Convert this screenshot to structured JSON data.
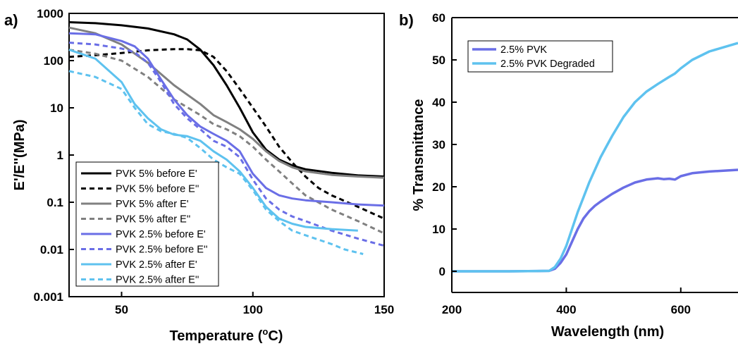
{
  "colors": {
    "black": "#000000",
    "gray": "#808080",
    "blue": "#6a6ee6",
    "lightblue": "#5ec2ef"
  },
  "chart_data": [
    {
      "panel_label": "a)",
      "type": "line",
      "xlabel": "Temperature (",
      "xlabel_sup": "o",
      "xlabel_suffix": "C)",
      "ylabel": "E'/E''(MPa)",
      "xlim": [
        30,
        150
      ],
      "ylim": [
        0.001,
        1000
      ],
      "yscale": "log",
      "xticks": [
        50,
        100,
        150
      ],
      "xtick_labels": [
        "50",
        "100",
        "150"
      ],
      "yticks": [
        0.001,
        0.01,
        0.1,
        1,
        10,
        100,
        1000
      ],
      "ytick_labels": [
        "0.001",
        "0.01",
        "0.1",
        "1",
        "10",
        "100",
        "1000"
      ],
      "legend_position": "lower-left",
      "series": [
        {
          "name": "PVK 5% before E'",
          "color": "#000000",
          "style": "solid",
          "x": [
            30,
            40,
            50,
            60,
            70,
            75,
            80,
            85,
            90,
            95,
            100,
            105,
            110,
            115,
            120,
            130,
            140,
            150
          ],
          "y": [
            650,
            620,
            560,
            480,
            360,
            280,
            170,
            80,
            30,
            10,
            3,
            1.3,
            0.8,
            0.6,
            0.5,
            0.42,
            0.37,
            0.35
          ]
        },
        {
          "name": "PVK 5% before E''",
          "color": "#000000",
          "style": "dashed",
          "x": [
            30,
            40,
            50,
            60,
            70,
            75,
            80,
            85,
            90,
            95,
            100,
            105,
            110,
            115,
            120,
            125,
            130,
            140,
            150
          ],
          "y": [
            120,
            130,
            145,
            165,
            175,
            175,
            165,
            120,
            60,
            25,
            10,
            4,
            1.5,
            0.7,
            0.35,
            0.2,
            0.14,
            0.08,
            0.045
          ]
        },
        {
          "name": "PVK 5% after E'",
          "color": "#808080",
          "style": "solid",
          "x": [
            30,
            40,
            50,
            60,
            70,
            80,
            85,
            90,
            95,
            100,
            105,
            110,
            115,
            120,
            130,
            140,
            150
          ],
          "y": [
            500,
            380,
            220,
            90,
            30,
            12,
            7,
            5,
            3.5,
            2.2,
            1.2,
            0.75,
            0.55,
            0.45,
            0.38,
            0.35,
            0.33
          ]
        },
        {
          "name": "PVK 5% after E''",
          "color": "#808080",
          "style": "dashed",
          "x": [
            30,
            40,
            50,
            60,
            70,
            80,
            85,
            90,
            95,
            100,
            105,
            110,
            115,
            120,
            130,
            140,
            150
          ],
          "y": [
            170,
            140,
            100,
            45,
            15,
            7,
            4.5,
            3.5,
            2.5,
            1.5,
            0.8,
            0.45,
            0.25,
            0.14,
            0.07,
            0.04,
            0.022
          ]
        },
        {
          "name": "PVK 2.5% before E'",
          "color": "#6a6ee6",
          "style": "solid",
          "x": [
            30,
            40,
            50,
            55,
            60,
            65,
            70,
            75,
            80,
            85,
            90,
            95,
            100,
            105,
            110,
            115,
            120,
            130,
            140,
            150
          ],
          "y": [
            380,
            360,
            260,
            200,
            110,
            40,
            15,
            7,
            4,
            2.8,
            2,
            1.2,
            0.4,
            0.2,
            0.14,
            0.12,
            0.11,
            0.1,
            0.09,
            0.085
          ]
        },
        {
          "name": "PVK 2.5% before E''",
          "color": "#6a6ee6",
          "style": "dashed",
          "x": [
            30,
            40,
            50,
            55,
            60,
            65,
            70,
            75,
            80,
            85,
            90,
            95,
            100,
            105,
            110,
            115,
            120,
            130,
            140,
            150
          ],
          "y": [
            240,
            220,
            180,
            150,
            90,
            35,
            12,
            6,
            3.5,
            2,
            1.5,
            0.9,
            0.3,
            0.12,
            0.07,
            0.05,
            0.04,
            0.025,
            0.017,
            0.012
          ]
        },
        {
          "name": "PVK 2.5% after E'",
          "color": "#5ec2ef",
          "style": "solid",
          "x": [
            30,
            40,
            50,
            55,
            60,
            65,
            70,
            75,
            80,
            85,
            90,
            95,
            100,
            105,
            110,
            115,
            120,
            130,
            140
          ],
          "y": [
            170,
            110,
            35,
            12,
            6,
            3.5,
            2.7,
            2.5,
            2,
            1.2,
            0.8,
            0.45,
            0.2,
            0.08,
            0.045,
            0.035,
            0.03,
            0.027,
            0.025
          ]
        },
        {
          "name": "PVK 2.5% after E''",
          "color": "#5ec2ef",
          "style": "dashed",
          "x": [
            30,
            40,
            50,
            55,
            60,
            65,
            70,
            75,
            80,
            85,
            90,
            95,
            100,
            105,
            110,
            115,
            120,
            130,
            135,
            142
          ],
          "y": [
            60,
            45,
            25,
            10,
            4.5,
            3.2,
            2.8,
            2.3,
            1.4,
            0.8,
            0.55,
            0.4,
            0.18,
            0.07,
            0.04,
            0.025,
            0.02,
            0.013,
            0.01,
            0.008
          ]
        }
      ]
    },
    {
      "panel_label": "b)",
      "type": "line",
      "xlabel": "Wavelength (nm)",
      "ylabel": "% Transmittance",
      "xlim": [
        200,
        700
      ],
      "ylim": [
        -5,
        60
      ],
      "xticks": [
        200,
        400,
        600
      ],
      "xtick_labels": [
        "200",
        "400",
        "600"
      ],
      "yticks": [
        0,
        10,
        20,
        30,
        40,
        50,
        60
      ],
      "ytick_labels": [
        "0",
        "10",
        "20",
        "30",
        "40",
        "50",
        "60"
      ],
      "legend_position": "top-left",
      "series": [
        {
          "name": "2.5% PVK",
          "color": "#6a6ee6",
          "style": "solid",
          "x": [
            200,
            300,
            370,
            380,
            390,
            400,
            410,
            420,
            430,
            440,
            450,
            460,
            480,
            500,
            520,
            540,
            560,
            570,
            580,
            590,
            600,
            620,
            650,
            700
          ],
          "y": [
            0,
            0,
            0.1,
            0.6,
            2,
            4,
            7,
            10,
            12.5,
            14.2,
            15.5,
            16.5,
            18.3,
            19.8,
            21,
            21.7,
            22,
            21.8,
            21.9,
            21.7,
            22.5,
            23.2,
            23.6,
            24
          ]
        },
        {
          "name": "2.5% PVK Degraded",
          "color": "#5ec2ef",
          "style": "solid",
          "x": [
            200,
            300,
            370,
            380,
            390,
            400,
            410,
            420,
            430,
            440,
            450,
            460,
            470,
            480,
            500,
            520,
            540,
            560,
            580,
            590,
            600,
            620,
            650,
            700
          ],
          "y": [
            0,
            0,
            0.1,
            1,
            3,
            6,
            10,
            14,
            17.5,
            21,
            24,
            27,
            29.5,
            32,
            36.5,
            40,
            42.5,
            44.3,
            46,
            46.8,
            48,
            50,
            52,
            54
          ]
        }
      ]
    }
  ]
}
